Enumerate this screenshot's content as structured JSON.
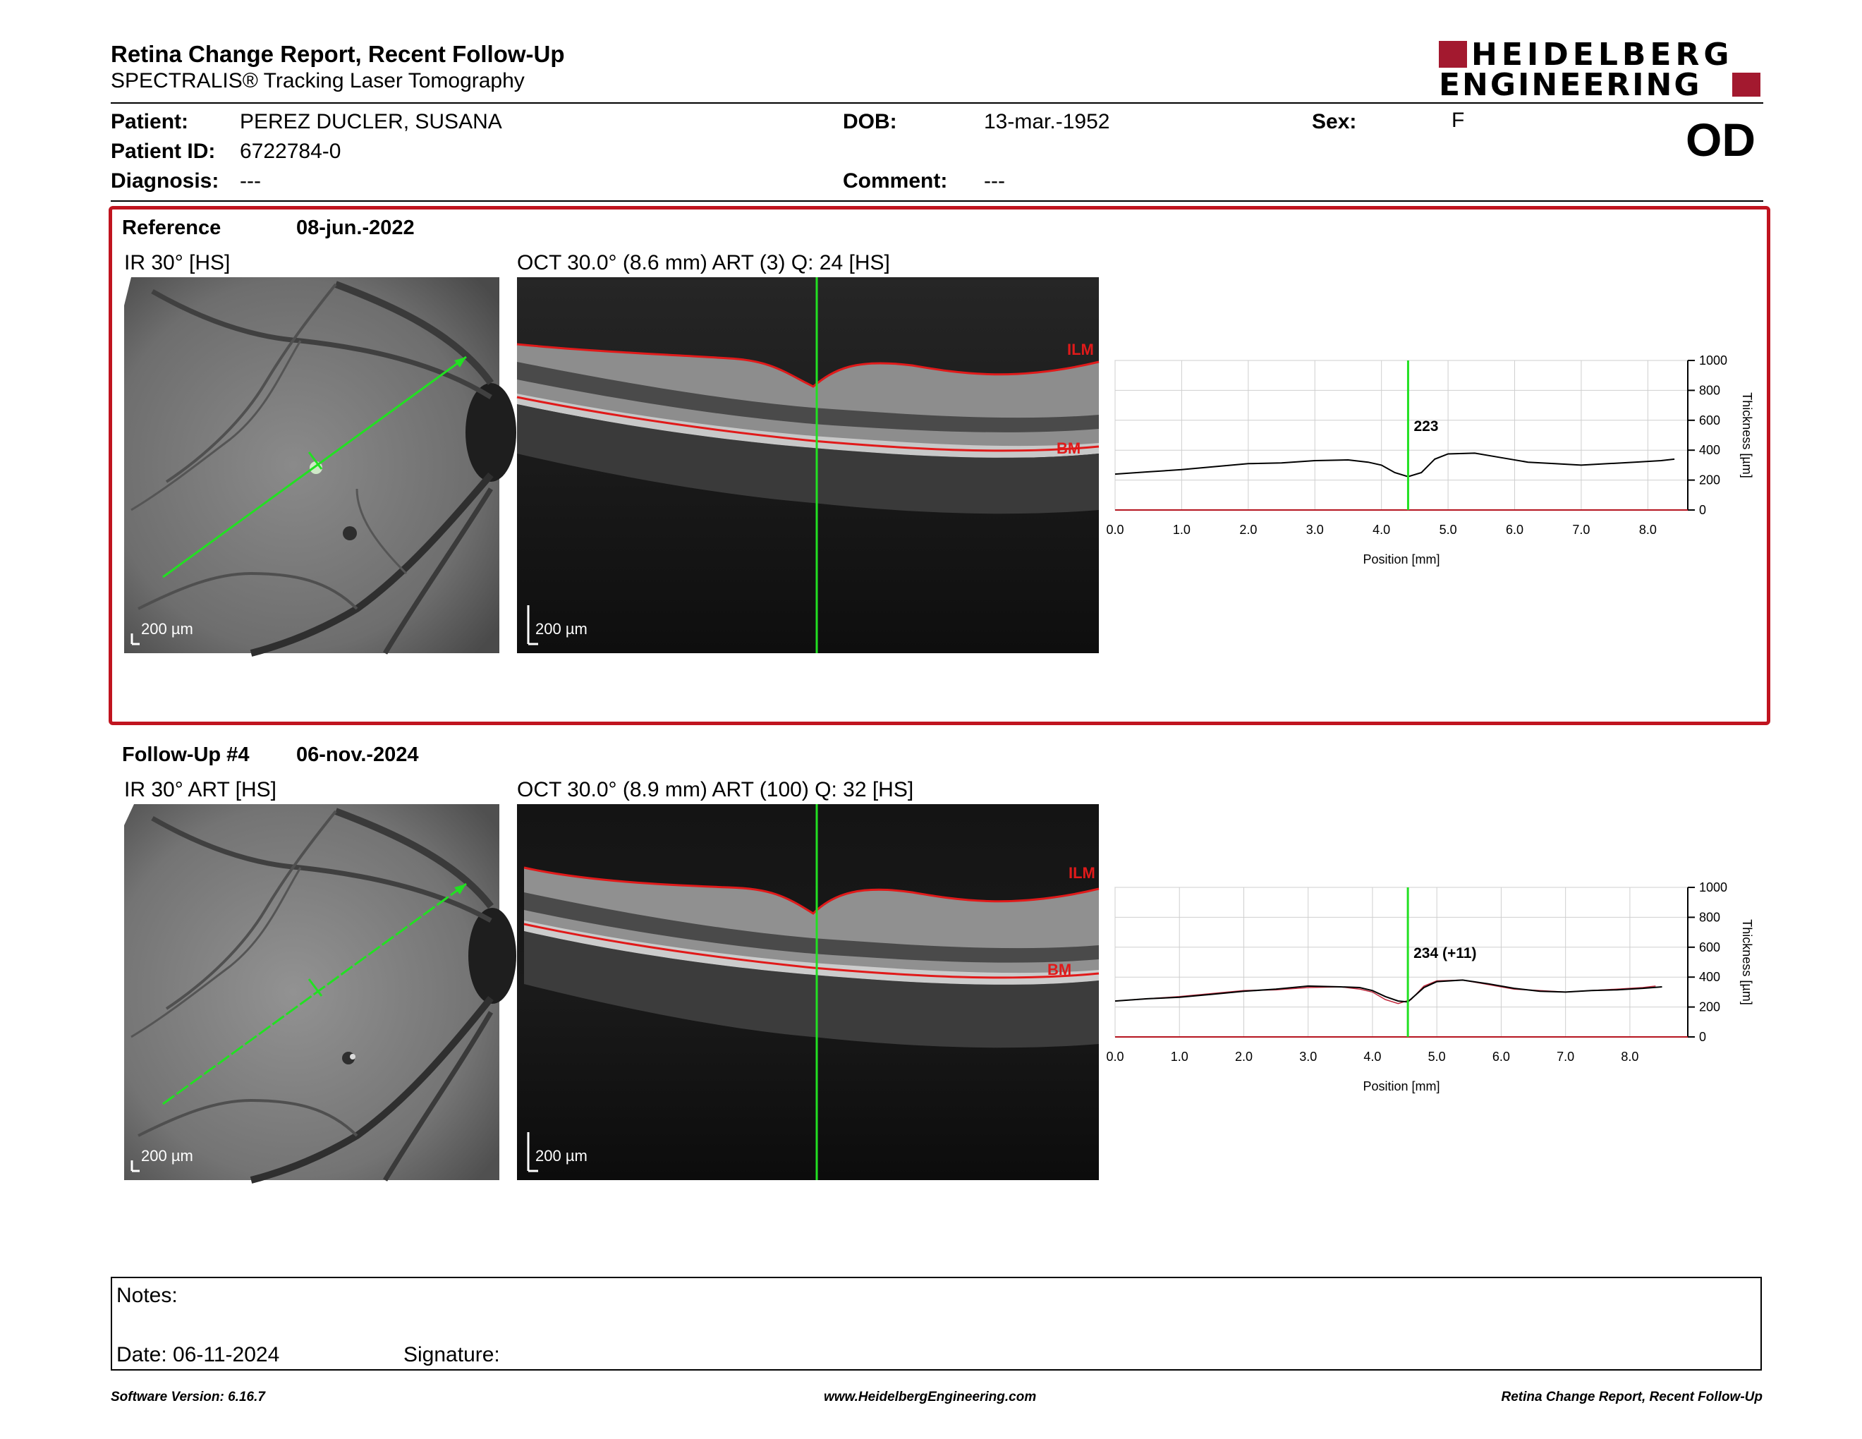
{
  "header": {
    "title": "Retina Change Report, Recent Follow-Up",
    "subtitle": "SPECTRALIS® Tracking Laser Tomography",
    "logo_line1": "HEIDELBERG",
    "logo_line2": "ENGINEERING",
    "brand_color": "#a3192f"
  },
  "patient": {
    "patient_label": "Patient:",
    "patient_value": "PEREZ DUCLER, SUSANA",
    "id_label": "Patient ID:",
    "id_value": "6722784-0",
    "diagnosis_label": "Diagnosis:",
    "diagnosis_value": "---",
    "dob_label": "DOB:",
    "dob_value": "13-mar.-1952",
    "comment_label": "Comment:",
    "comment_value": "---",
    "sex_label": "Sex:",
    "sex_value": "F",
    "eye": "OD"
  },
  "reference": {
    "label": "Reference",
    "date": "08-jun.-2022",
    "ir_label": "IR 30° [HS]",
    "oct_label": "OCT 30.0° (8.6 mm) ART (3) Q: 24 [HS]",
    "scale_ir": "200 µm",
    "scale_oct": "200 µm",
    "ilm": "ILM",
    "bm": "BM"
  },
  "followup": {
    "label": "Follow-Up #4",
    "date": "06-nov.-2024",
    "ir_label": "IR 30° ART [HS]",
    "oct_label": "OCT 30.0° (8.9 mm) ART (100) Q: 32 [HS]",
    "scale_ir": "200 µm",
    "scale_oct": "200 µm",
    "ilm": "ILM",
    "bm": "BM"
  },
  "chart_data": [
    {
      "type": "line",
      "xlabel": "Position [mm]",
      "ylabel": "Thickness [µm]",
      "xlim": [
        0,
        8.6
      ],
      "ylim": [
        0,
        1000
      ],
      "x_ticks": [
        "0.0",
        "1.0",
        "2.0",
        "3.0",
        "4.0",
        "5.0",
        "6.0",
        "7.0",
        "8.0"
      ],
      "y_ticks": [
        "0",
        "200",
        "400",
        "600",
        "800",
        "1000"
      ],
      "cursor_x": 4.4,
      "cursor_label": "223",
      "series": [
        {
          "x": [
            0,
            0.5,
            1,
            1.5,
            2,
            2.5,
            3,
            3.5,
            3.8,
            4.0,
            4.2,
            4.4,
            4.6,
            4.8,
            5.0,
            5.4,
            5.8,
            6.2,
            6.6,
            7.0,
            7.4,
            7.8,
            8.2,
            8.4
          ],
          "y": [
            240,
            255,
            270,
            290,
            310,
            315,
            330,
            335,
            320,
            300,
            250,
            223,
            250,
            340,
            375,
            380,
            350,
            320,
            310,
            300,
            310,
            320,
            330,
            340
          ]
        }
      ]
    },
    {
      "type": "line",
      "xlabel": "Position [mm]",
      "ylabel": "Thickness [µm]",
      "xlim": [
        0,
        8.9
      ],
      "ylim": [
        0,
        1000
      ],
      "x_ticks": [
        "0.0",
        "1.0",
        "2.0",
        "3.0",
        "4.0",
        "5.0",
        "6.0",
        "7.0",
        "8.0"
      ],
      "y_ticks": [
        "0",
        "200",
        "400",
        "600",
        "800",
        "1000"
      ],
      "cursor_x": 4.55,
      "cursor_label": "234 (+11)",
      "series": [
        {
          "x": [
            0,
            0.5,
            1,
            1.5,
            2,
            2.5,
            3,
            3.5,
            3.8,
            4.0,
            4.2,
            4.4,
            4.55,
            4.8,
            5.0,
            5.4,
            5.8,
            6.2,
            6.6,
            7.0,
            7.4,
            7.8,
            8.2,
            8.5
          ],
          "y": [
            240,
            255,
            265,
            285,
            305,
            320,
            340,
            335,
            330,
            310,
            270,
            240,
            234,
            330,
            370,
            380,
            355,
            325,
            305,
            300,
            310,
            315,
            325,
            335
          ]
        },
        {
          "x": [
            0,
            0.5,
            1,
            1.5,
            2,
            2.5,
            3,
            3.5,
            3.8,
            4.0,
            4.2,
            4.4,
            4.6,
            4.8,
            5.0,
            5.4,
            5.8,
            6.2,
            6.6,
            7.0,
            7.4,
            7.8,
            8.2,
            8.4
          ],
          "y": [
            240,
            255,
            270,
            290,
            310,
            315,
            330,
            335,
            320,
            300,
            250,
            223,
            250,
            340,
            375,
            380,
            350,
            320,
            310,
            300,
            310,
            320,
            330,
            340
          ]
        }
      ]
    }
  ],
  "notes": {
    "notes_label": "Notes:",
    "date_label": "Date: 06-11-2024",
    "signature_label": "Signature:"
  },
  "footer": {
    "software": "Software Version: 6.16.7",
    "website": "www.HeidelbergEngineering.com",
    "report": "Retina Change Report, Recent Follow-Up"
  }
}
